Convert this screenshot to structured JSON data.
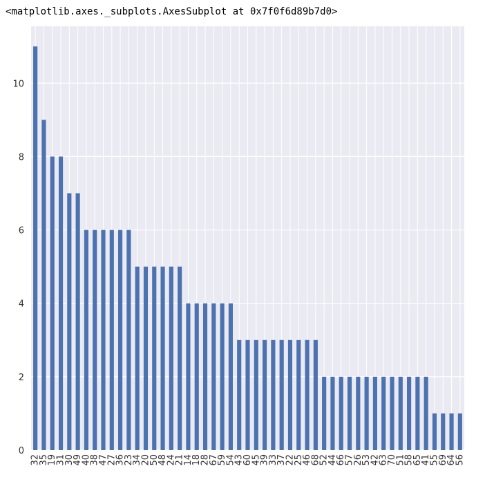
{
  "output_repr": "<matplotlib.axes._subplots.AxesSubplot at 0x7f0f6d89b7d0>",
  "colors": {
    "bar": "#4c72b0",
    "plot_background": "#eaeaf2",
    "grid": "#ffffff",
    "tick_text": "#333333"
  },
  "chart_data": {
    "type": "bar",
    "style": "seaborn-darkgrid",
    "grid": true,
    "categories": [
      "32",
      "35",
      "19",
      "31",
      "30",
      "49",
      "40",
      "38",
      "47",
      "27",
      "36",
      "23",
      "34",
      "20",
      "50",
      "48",
      "24",
      "21",
      "14",
      "18",
      "28",
      "67",
      "59",
      "54",
      "43",
      "60",
      "45",
      "39",
      "33",
      "37",
      "22",
      "25",
      "46",
      "68",
      "52",
      "44",
      "66",
      "57",
      "26",
      "53",
      "42",
      "63",
      "70",
      "51",
      "58",
      "65",
      "41",
      "55",
      "69",
      "64",
      "56"
    ],
    "values": [
      11,
      9,
      8,
      8,
      7,
      7,
      6,
      6,
      6,
      6,
      6,
      6,
      5,
      5,
      5,
      5,
      5,
      5,
      4,
      4,
      4,
      4,
      4,
      4,
      3,
      3,
      3,
      3,
      3,
      3,
      3,
      3,
      3,
      3,
      2,
      2,
      2,
      2,
      2,
      2,
      2,
      2,
      2,
      2,
      2,
      2,
      2,
      1,
      1,
      1,
      1
    ],
    "yticks": [
      0,
      2,
      4,
      6,
      8,
      10
    ],
    "ylim": [
      0,
      11.55
    ]
  }
}
